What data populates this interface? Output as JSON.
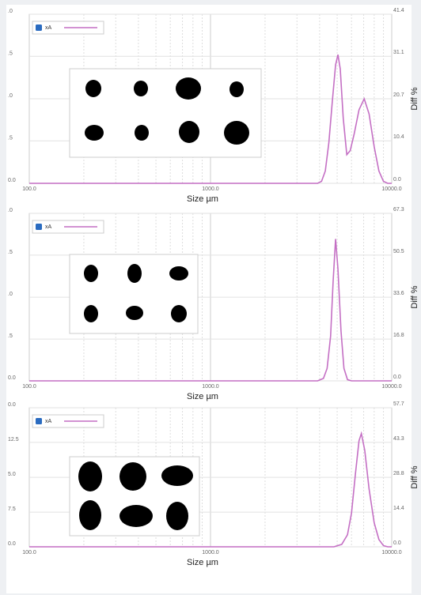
{
  "chart_data": [
    {
      "type": "line",
      "x_label": "Size µm",
      "y_label": "Diff %",
      "log_x": true,
      "grid": true,
      "left_axis_labels": [
        ".0",
        ".5",
        ".0",
        ".5",
        "0.0"
      ],
      "xlim": [
        100,
        10000
      ],
      "xticks": [
        {
          "value": 100,
          "label": "100.0"
        },
        {
          "value": 1000,
          "label": "1000.0"
        },
        {
          "value": 10000,
          "label": "10000.0"
        }
      ],
      "ylim": [
        0,
        41.4
      ],
      "yticks": [
        {
          "value": 0,
          "label": "0.0"
        },
        10.4,
        20.7,
        31.1,
        41.4
      ],
      "series": [
        {
          "name": "xA",
          "color": "#c46fc4",
          "x": [
            100,
            3900,
            4100,
            4300,
            4500,
            4700,
            4900,
            5050,
            5200,
            5400,
            5650,
            5900,
            6200,
            6600,
            7050,
            7500,
            8000,
            8500,
            9000,
            9500,
            10000
          ],
          "values": [
            0,
            0,
            0.5,
            3,
            10,
            20,
            29,
            31.5,
            28,
            16,
            7,
            8,
            12,
            18,
            20.7,
            17,
            9,
            3,
            0.5,
            0,
            0
          ]
        }
      ]
    },
    {
      "type": "line",
      "x_label": "Size µm",
      "y_label": "Diff %",
      "log_x": true,
      "grid": true,
      "left_axis_labels": [
        ".0",
        ".5",
        ".0",
        ".5",
        "0.0"
      ],
      "xlim": [
        100,
        10000
      ],
      "xticks": [
        {
          "value": 100,
          "label": "100.0"
        },
        {
          "value": 1000,
          "label": "1000.0"
        },
        {
          "value": 10000,
          "label": "10000.0"
        }
      ],
      "ylim": [
        0,
        67.3
      ],
      "yticks": [
        {
          "value": 0,
          "label": "0.0"
        },
        16.8,
        33.6,
        50.5,
        67.3
      ],
      "series": [
        {
          "name": "xA",
          "color": "#c46fc4",
          "x": [
            100,
            3900,
            4200,
            4400,
            4600,
            4750,
            4900,
            5050,
            5250,
            5450,
            5700,
            6000,
            10000
          ],
          "values": [
            0,
            0,
            1,
            5,
            18,
            40,
            57,
            45,
            20,
            5,
            0.5,
            0,
            0
          ]
        }
      ]
    },
    {
      "type": "line",
      "x_label": "Size µm",
      "y_label": "Diff %",
      "log_x": true,
      "grid": true,
      "left_axis_labels": [
        "0.0",
        "12.5",
        "5.0",
        "7.5",
        "0.0"
      ],
      "xlim": [
        100,
        10000
      ],
      "xticks": [
        {
          "value": 100,
          "label": "100.0"
        },
        {
          "value": 1000,
          "label": "1000.0"
        },
        {
          "value": 10000,
          "label": "10000.0"
        }
      ],
      "ylim": [
        0,
        57.7
      ],
      "yticks": [
        {
          "value": 0,
          "label": "0.0"
        },
        14.4,
        28.8,
        43.3,
        57.7
      ],
      "series": [
        {
          "name": "xA",
          "color": "#c46fc4",
          "x": [
            100,
            4800,
            5300,
            5700,
            6000,
            6300,
            6600,
            6800,
            7100,
            7500,
            8000,
            8500,
            9000,
            9500,
            10000
          ],
          "values": [
            0,
            0,
            1,
            5,
            14,
            30,
            44,
            47,
            40,
            24,
            10,
            3,
            0.5,
            0,
            0
          ]
        }
      ]
    }
  ]
}
